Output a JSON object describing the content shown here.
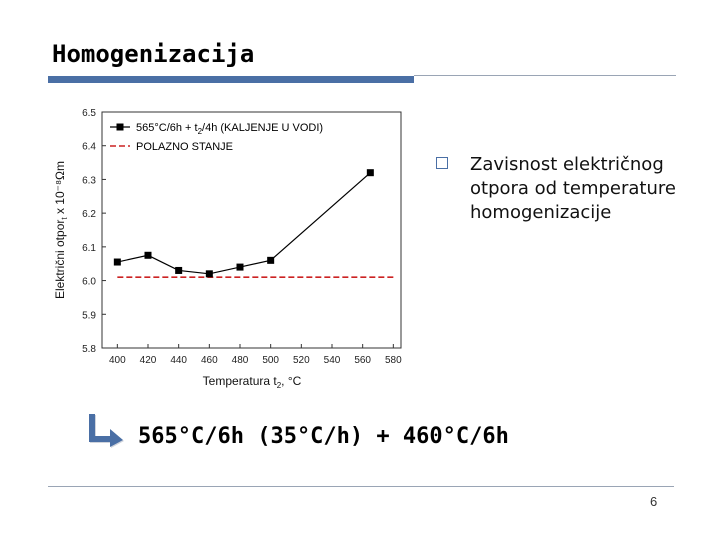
{
  "slide": {
    "title": "Homogenizacija",
    "bullet": "Zavisnost električnog otpora od temperature homogenizacije",
    "formula": "565°C/6h (35°C/h) + 460°C/6h",
    "page_number": "6"
  },
  "colors": {
    "accent": "#4a6fa5",
    "series_main": "#000000",
    "series_reference": "#cc2222"
  },
  "chart_data": {
    "type": "line",
    "xlabel_main": "Temperatura t",
    "xlabel_sub": "2",
    "xlabel_unit": ", °C",
    "ylabel_main": "Električni otpor",
    "ylabel_sub": "t",
    "ylabel_unit": " x 10⁻⁸Ωm",
    "xlim": [
      390,
      585
    ],
    "ylim": [
      5.8,
      6.5
    ],
    "xticks": [
      400,
      420,
      440,
      460,
      480,
      500,
      520,
      540,
      560,
      580
    ],
    "xtick_labels": [
      "400",
      "420",
      "440",
      "460",
      "480",
      "500",
      "520",
      "540",
      "560",
      "580"
    ],
    "yticks": [
      5.8,
      5.9,
      6.0,
      6.1,
      6.2,
      6.3,
      6.4,
      6.5
    ],
    "ytick_labels": [
      "5.8",
      "5.9",
      "6.0",
      "6.1",
      "6.2",
      "6.3",
      "6.4",
      "6.5"
    ],
    "grid": false,
    "legend_position": "top-left",
    "series": [
      {
        "name": "565°C/6h + t",
        "name_sub": "2",
        "name_rest": "/4h (KALJENJE U VODI)",
        "x": [
          400,
          420,
          440,
          460,
          480,
          500,
          565
        ],
        "y": [
          6.055,
          6.075,
          6.03,
          6.02,
          6.04,
          6.06,
          6.32
        ]
      },
      {
        "name": "POLAZNO STANJE",
        "x": [
          400,
          580
        ],
        "y": [
          6.01,
          6.01
        ]
      }
    ]
  }
}
